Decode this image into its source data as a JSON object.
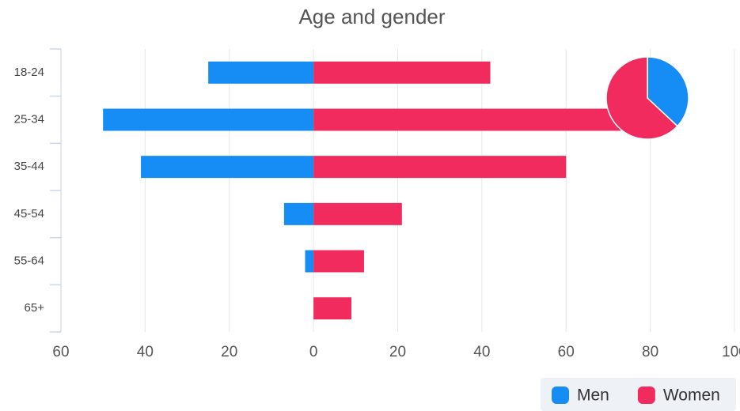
{
  "chart_data": {
    "type": "bar",
    "orientation": "horizontal",
    "title": "Age and gender",
    "categories": [
      "18-24",
      "25-34",
      "35-44",
      "45-54",
      "55-64",
      "65+"
    ],
    "series": [
      {
        "name": "Men",
        "color": "#168cf5",
        "values": [
          -25,
          -50,
          -41,
          -7,
          -2,
          0
        ]
      },
      {
        "name": "Women",
        "color": "#f22b5f",
        "values": [
          42,
          73,
          60,
          21,
          12,
          9
        ]
      }
    ],
    "xlim": [
      -60,
      100
    ],
    "xticks": [
      {
        "value": -60,
        "label": "60"
      },
      {
        "value": -40,
        "label": "40"
      },
      {
        "value": -20,
        "label": "20"
      },
      0,
      20,
      40,
      60,
      80,
      100
    ],
    "grid": true,
    "legend": "bottom-right",
    "pie": {
      "type": "pie",
      "values": [
        37,
        63
      ]
    }
  }
}
